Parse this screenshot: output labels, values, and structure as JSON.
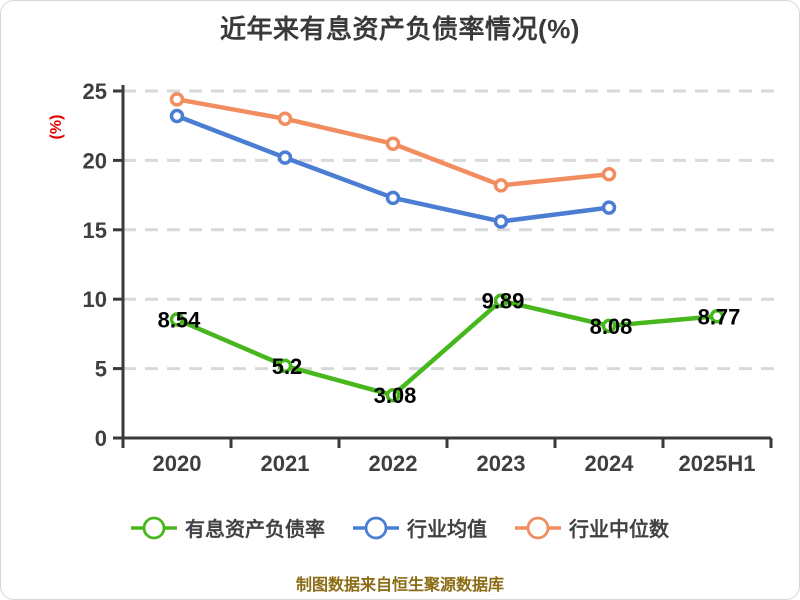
{
  "title": "近年来有息资产负债率情况(%)",
  "footer": "制图数据来自恒生聚源数据库",
  "colors": {
    "main_series": "#47b71d",
    "industry_average": "#4b7ed3",
    "industry_median": "#f28d60",
    "axis_line": "#3a3a3a",
    "axis_text": "#3f3f3f",
    "grid_line": "#d9d9d9",
    "y_axis_title": "#e60000",
    "data_label": "#000000",
    "footer_text": "#8a6c14"
  },
  "chart_data": {
    "type": "line",
    "title": "近年来有息资产负债率情况(%)",
    "ylabel": "(%)",
    "ylim": [
      0,
      25
    ],
    "yticks": [
      0,
      5,
      10,
      15,
      20,
      25
    ],
    "grid": "horizontal-dashed",
    "legend_position": "bottom",
    "categories": [
      "2020",
      "2021",
      "2022",
      "2023",
      "2024",
      "2025H1"
    ],
    "series": [
      {
        "key": "industry-median",
        "name": "行业中位数",
        "color": "#f28d60",
        "values": [
          24.4,
          23.0,
          21.2,
          18.2,
          19.0,
          null
        ]
      },
      {
        "key": "industry-average",
        "name": "行业均值",
        "color": "#4b7ed3",
        "values": [
          23.2,
          20.2,
          17.3,
          15.6,
          16.6,
          null
        ]
      },
      {
        "key": "interest-bearing-debt-ratio",
        "name": "有息资产负债率",
        "color": "#47b71d",
        "values": [
          8.54,
          5.2,
          3.08,
          9.89,
          8.08,
          8.77
        ],
        "labels": [
          "8.54",
          "5.2",
          "3.08",
          "9.89",
          "8.08",
          "8.77"
        ]
      }
    ],
    "legend_order": [
      "interest-bearing-debt-ratio",
      "industry-average",
      "industry-median"
    ]
  }
}
